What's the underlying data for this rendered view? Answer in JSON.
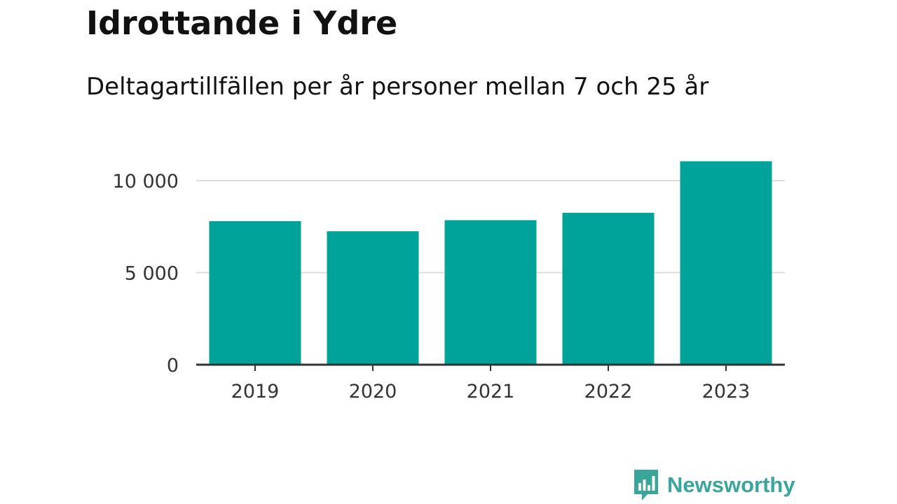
{
  "title": "Idrottande i Ydre",
  "subtitle": "Deltagartillfällen per år personer mellan 7 och 25 år",
  "brand": {
    "name": "Newsworthy",
    "logo_icon": "bar-chart-speech-bubble-icon",
    "color": "#3aa69b"
  },
  "chart_data": {
    "type": "bar",
    "title": "Idrottande i Ydre",
    "subtitle": "Deltagartillfällen per år personer mellan 7 och 25 år",
    "categories": [
      "2019",
      "2020",
      "2021",
      "2022",
      "2023"
    ],
    "values": [
      7800,
      7250,
      7850,
      8250,
      11050
    ],
    "yticks": [
      0,
      5000,
      10000
    ],
    "ytick_labels": [
      "0",
      "5 000",
      "10 000"
    ],
    "ylim": [
      0,
      12000
    ],
    "grid": true,
    "legend": "none",
    "colors": {
      "bar": "#00a399",
      "grid": "#dddddd",
      "axis": "#333333",
      "tick_text": "#333333"
    }
  }
}
